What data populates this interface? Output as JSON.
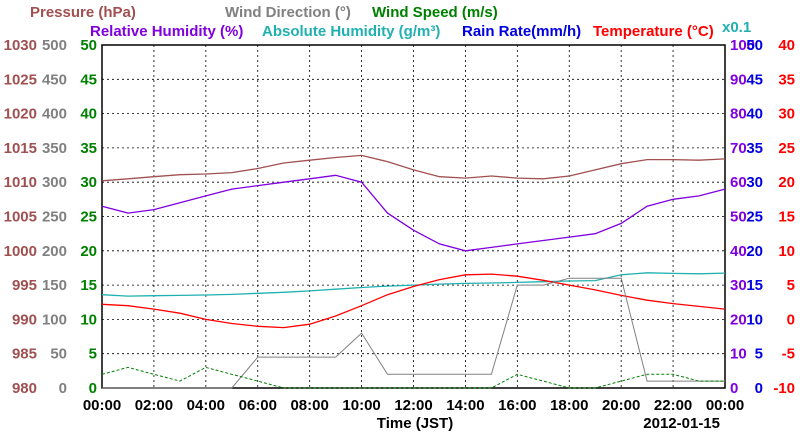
{
  "chart_data": {
    "type": "line",
    "xlabel": "Time (JST)",
    "date_label": "2012-01-15",
    "x_ticks": [
      "00:00",
      "02:00",
      "04:00",
      "06:00",
      "08:00",
      "10:00",
      "12:00",
      "14:00",
      "16:00",
      "18:00",
      "20:00",
      "22:00",
      "00:00"
    ],
    "header_top": [
      {
        "text": "Pressure (hPa)",
        "color": "#a05050"
      },
      {
        "text": "Wind Direction (°)",
        "color": "#808080"
      },
      {
        "text": "Wind Speed (m/s)",
        "color": "#008000"
      }
    ],
    "header_bottom": [
      {
        "text": "Relative Humidity (%)",
        "color": "#8000e0"
      },
      {
        "text": "Absolute Humidity (g/m³)",
        "color": "#20b0b0"
      },
      {
        "text": "Rain Rate(mm/h)",
        "color": "#0000e0"
      },
      {
        "text": "Temperature (°C)",
        "color": "#ff0000"
      }
    ],
    "abs_hum_factor": "x0.1",
    "axes": {
      "pressure": {
        "ticks": [
          "980",
          "985",
          "990",
          "995",
          "1000",
          "1005",
          "1010",
          "1015",
          "1020",
          "1025",
          "1030"
        ],
        "color": "#a05050",
        "range": [
          980,
          1030
        ]
      },
      "wind_dir": {
        "ticks": [
          "0",
          "50",
          "100",
          "150",
          "200",
          "250",
          "300",
          "350",
          "400",
          "450",
          "500"
        ],
        "color": "#808080",
        "range": [
          0,
          500
        ]
      },
      "wind_speed": {
        "ticks": [
          "0",
          "5",
          "10",
          "15",
          "20",
          "25",
          "30",
          "35",
          "40",
          "45",
          "50"
        ],
        "color": "#008000",
        "range": [
          0,
          50
        ]
      },
      "rel_hum": {
        "ticks": [
          "0",
          "10",
          "20",
          "30",
          "40",
          "50",
          "60",
          "70",
          "80",
          "90",
          "100"
        ],
        "color": "#8000e0",
        "range": [
          0,
          100
        ]
      },
      "rain": {
        "ticks": [
          "0",
          "5",
          "10",
          "15",
          "20",
          "25",
          "30",
          "35",
          "40",
          "45",
          "50"
        ],
        "color": "#0000e0",
        "range": [
          0,
          50
        ]
      },
      "temp": {
        "ticks": [
          "-10",
          "-5",
          "0",
          "5",
          "10",
          "15",
          "20",
          "25",
          "30",
          "35",
          "40"
        ],
        "color": "#ff0000",
        "range": [
          -10,
          40
        ]
      }
    },
    "hours": [
      0,
      1,
      2,
      3,
      4,
      5,
      6,
      7,
      8,
      9,
      10,
      11,
      12,
      13,
      14,
      15,
      16,
      17,
      18,
      19,
      20,
      21,
      22,
      23,
      24
    ],
    "series": [
      {
        "name": "Pressure (hPa)",
        "color": "#a05050",
        "values": [
          1010.2,
          1010.5,
          1010.8,
          1011.1,
          1011.2,
          1011.4,
          1012.0,
          1012.8,
          1013.2,
          1013.6,
          1013.9,
          1013.0,
          1011.8,
          1010.8,
          1010.6,
          1010.9,
          1010.6,
          1010.5,
          1010.9,
          1011.8,
          1012.7,
          1013.3,
          1013.3,
          1013.2,
          1013.4
        ]
      },
      {
        "name": "Relative Humidity (%)",
        "color": "#8000e0",
        "values": [
          53,
          51,
          52,
          54,
          56,
          58,
          59,
          60,
          61,
          62,
          60,
          51,
          46,
          42,
          40,
          41,
          42,
          43,
          44,
          45,
          48,
          53,
          55,
          56,
          58
        ]
      },
      {
        "name": "Absolute Humidity (g/m³) x0.1",
        "color": "#20b0b0",
        "values": [
          27.2,
          26.8,
          26.9,
          27.0,
          27.1,
          27.3,
          27.6,
          27.9,
          28.3,
          28.8,
          29.3,
          29.7,
          30.0,
          30.3,
          30.5,
          30.6,
          30.8,
          31.0,
          31.2,
          31.3,
          33.0,
          33.6,
          33.4,
          33.3,
          33.5
        ]
      },
      {
        "name": "Temperature (°C)",
        "color": "#ff0000",
        "values": [
          2.2,
          2.0,
          1.5,
          0.9,
          0.0,
          -0.6,
          -1.0,
          -1.2,
          -0.7,
          0.5,
          2.0,
          3.6,
          4.8,
          5.8,
          6.5,
          6.6,
          6.3,
          5.7,
          5.0,
          4.3,
          3.5,
          2.8,
          2.3,
          1.9,
          1.5
        ]
      },
      {
        "name": "Wind Direction (°)",
        "color": "#808080",
        "values": [
          0,
          0,
          0,
          0,
          0,
          0,
          45,
          45,
          45,
          45,
          80,
          20,
          20,
          20,
          20,
          20,
          150,
          150,
          160,
          160,
          160,
          10,
          10,
          10,
          10
        ]
      },
      {
        "name": "Wind Speed (m/s)",
        "color": "#008000",
        "values": [
          2,
          3,
          2,
          1,
          3,
          2,
          1,
          0,
          0,
          0,
          0,
          0,
          0,
          0,
          0,
          0,
          2,
          1,
          0,
          0,
          1,
          2,
          2,
          1,
          1
        ]
      }
    ]
  }
}
